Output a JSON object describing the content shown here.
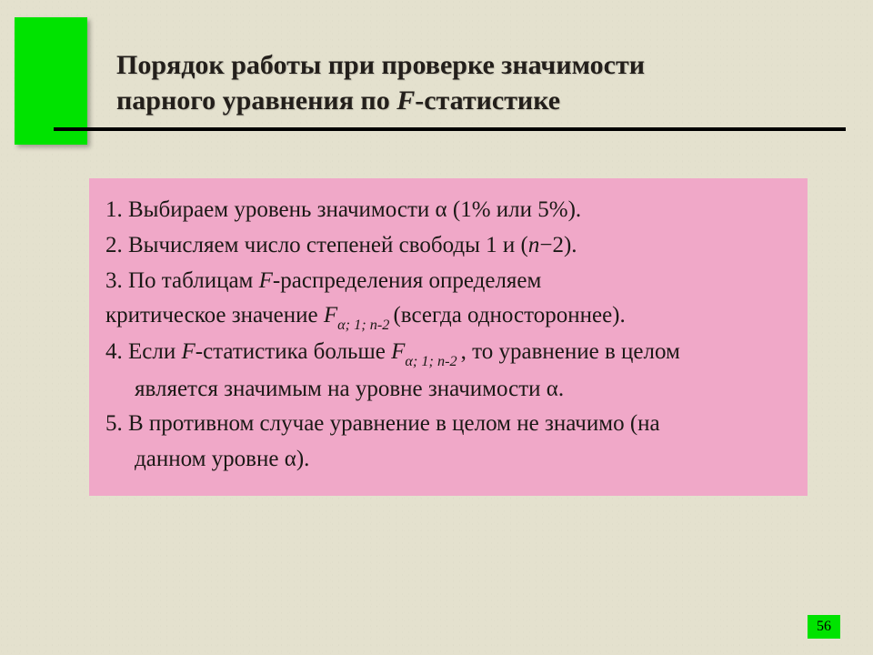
{
  "colors": {
    "background": "#e4e1ce",
    "accent": "#00e300",
    "rule": "#000000",
    "contentBox": "#f0a8c8",
    "titleText": "#231f1b",
    "bodyText": "#1b1916"
  },
  "typography": {
    "titleSize": 30,
    "bodySize": 25,
    "family": "Times New Roman"
  },
  "title": {
    "line1": "Порядок работы при проверке значимости",
    "line2_pre": "парного уравнения по ",
    "line2_ital": "F",
    "line2_post": "-статистике"
  },
  "items": {
    "l1_pre": "1. Выбираем уровень значимости ",
    "alpha": "α",
    "l1_post": " (1% или 5%).",
    "l2_pre": "2. Вычисляем число степеней свободы 1 и (",
    "l2_n": "n",
    "minus": "−",
    "l2_post": "2).",
    "l3_pre": "3. По таблицам ",
    "l3_F": "F",
    "l3_post": "-распределения определяем",
    "l3b_pre": "критическое значение ",
    "l3b_F": "F",
    "l3b_sub": "α; 1; n-2 ",
    "l3b_post": "(всегда одностороннее).",
    "l4_pre": "4. Если ",
    "l4_F1": "F",
    "l4_mid1": "-статистика больше ",
    "l4_F2": "F",
    "l4_sub": "α; 1; n-2 ",
    "l4_post": ", то уравнение в целом",
    "l4b_pre": "является значимым на уровне значимости ",
    "l4b_post": ".",
    "l5": "5. В противном случае уравнение в целом не значимо (на",
    "l5b_pre": "данном уровне ",
    "l5b_post": ")."
  },
  "pageNumber": "56"
}
